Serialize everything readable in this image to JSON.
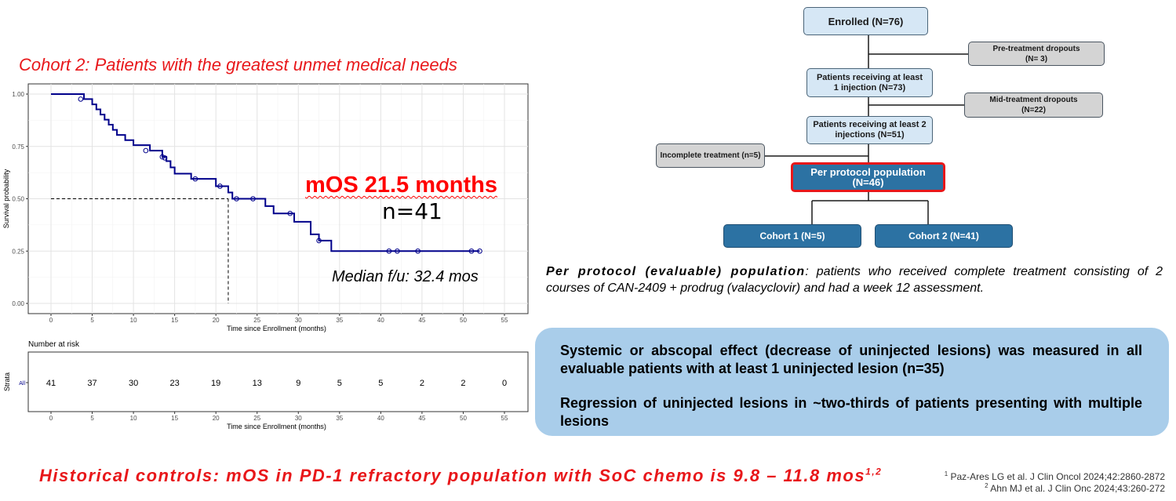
{
  "slide": {
    "cohort_title": "Cohort 2: Patients with the greatest unmet medical needs",
    "mos": "mOS 21.5 months",
    "n": "n=41",
    "median_fu": "Median f/u: 32.4 mos",
    "historical": "Historical controls: mOS in PD-1 refractory population with SoC chemo is 9.8 – 11.8 mos",
    "historical_sup": "1,2",
    "ref1_sup": "1",
    "ref1": "Paz-Ares LG et al. J Clin Oncol 2024;42:2860-2872",
    "ref2_sup": "2",
    "ref2": "Ahn MJ et al.  J Clin Onc 2024;43:260-272"
  },
  "pp_text": {
    "bold": "Per protocol (evaluable) population",
    "rest": ": patients who received complete treatment consisting of 2 courses of CAN-2409 + prodrug (valacyclovir) and had a week 12 assessment."
  },
  "blue_box": {
    "para1": "Systemic or abscopal effect (decrease of uninjected lesions) was measured in all evaluable patients with at least 1 uninjected lesion (n=35)",
    "para2": "Regression of uninjected lesions in ~two-thirds of patients presenting with multiple lesions"
  },
  "flowchart": {
    "enrolled": "Enrolled (N=76)",
    "pre_dropouts": [
      "Pre-treatment dropouts",
      "(N= 3)"
    ],
    "receiving1": [
      "Patients receiving at least",
      "1 injection  (N=73)"
    ],
    "mid_dropouts": [
      "Mid-treatment dropouts",
      "(N=22)"
    ],
    "receiving2": [
      "Patients receiving at least 2",
      "injections  (N=51)"
    ],
    "incomplete": "Incomplete treatment (n=5)",
    "per_protocol": [
      "Per protocol population",
      "(N=46)"
    ],
    "cohort1": "Cohort 1 (N=5)",
    "cohort2": "Cohort 2 (N=41)"
  },
  "chart_data": [
    {
      "type": "line",
      "subtype": "kaplan-meier",
      "xlabel": "Time since Enrollment (months)",
      "ylabel": "Survival probability",
      "xlim": [
        0,
        55
      ],
      "ylim": [
        0,
        1
      ],
      "xticks": [
        0,
        5,
        10,
        15,
        20,
        25,
        30,
        35,
        40,
        45,
        50,
        55
      ],
      "yticks": [
        "0.00",
        "0.25",
        "0.50",
        "0.75",
        "1.00"
      ],
      "grid": true,
      "line_color": "#00008b",
      "steps": [
        [
          0,
          1.0
        ],
        [
          4,
          0.976
        ],
        [
          5,
          0.951
        ],
        [
          5.5,
          0.927
        ],
        [
          6,
          0.902
        ],
        [
          6.5,
          0.878
        ],
        [
          7,
          0.854
        ],
        [
          7.5,
          0.829
        ],
        [
          8,
          0.805
        ],
        [
          9,
          0.78
        ],
        [
          10,
          0.756
        ],
        [
          12,
          0.73
        ],
        [
          13.5,
          0.7
        ],
        [
          14,
          0.68
        ],
        [
          14.5,
          0.65
        ],
        [
          15,
          0.62
        ],
        [
          17,
          0.595
        ],
        [
          20,
          0.56
        ],
        [
          21.5,
          0.53
        ],
        [
          22,
          0.5
        ],
        [
          26,
          0.465
        ],
        [
          27,
          0.43
        ],
        [
          29,
          0.43
        ],
        [
          29.5,
          0.39
        ],
        [
          31,
          0.39
        ],
        [
          31.5,
          0.33
        ],
        [
          32.5,
          0.3
        ],
        [
          34,
          0.25
        ],
        [
          52,
          0.25
        ]
      ],
      "censored": [
        [
          3.6,
          0.976
        ],
        [
          11.5,
          0.73
        ],
        [
          13.5,
          0.7
        ],
        [
          13.8,
          0.695
        ],
        [
          17.5,
          0.595
        ],
        [
          20.5,
          0.56
        ],
        [
          22.5,
          0.5
        ],
        [
          24.5,
          0.5
        ],
        [
          29,
          0.43
        ],
        [
          32.5,
          0.3
        ],
        [
          41,
          0.25
        ],
        [
          42,
          0.25
        ],
        [
          44.5,
          0.25
        ],
        [
          51,
          0.25
        ],
        [
          52,
          0.25
        ]
      ],
      "median": {
        "x": 21.5,
        "y": 0.5
      }
    },
    {
      "type": "table",
      "title": "Number at risk",
      "ylabel": "Strata",
      "strata": "All",
      "xlabel": "Time since Enrollment (months)",
      "xlim": [
        0,
        55
      ],
      "xticks": [
        0,
        5,
        10,
        15,
        20,
        25,
        30,
        35,
        40,
        45,
        50,
        55
      ],
      "x": [
        0,
        5,
        10,
        15,
        20,
        25,
        30,
        35,
        40,
        45,
        50,
        55
      ],
      "values": [
        41,
        37,
        30,
        23,
        19,
        13,
        9,
        5,
        5,
        2,
        2,
        0
      ]
    }
  ]
}
